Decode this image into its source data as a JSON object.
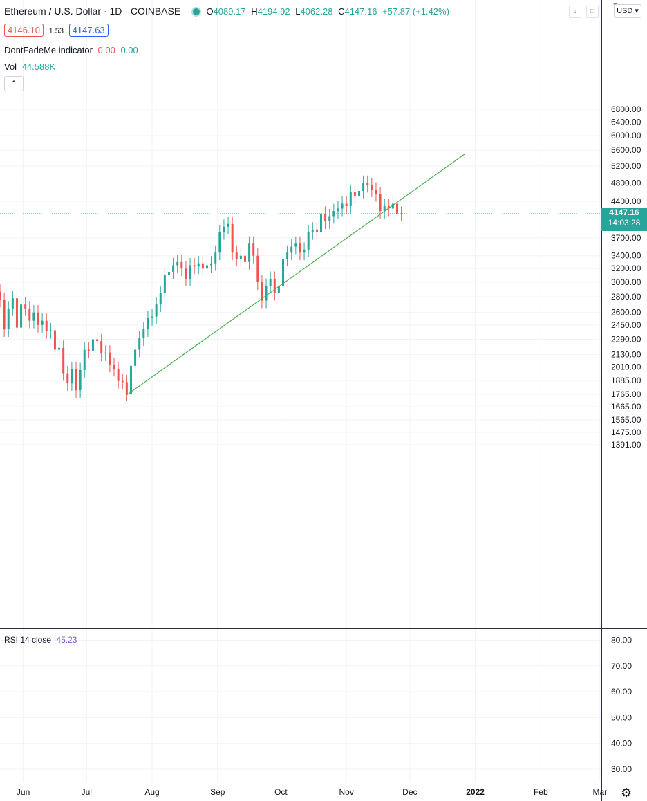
{
  "header": {
    "title": "Ethereum / U.S. Dollar · 1D · COINBASE",
    "o_label": "O",
    "o": "4089.17",
    "h_label": "H",
    "h": "4194.92",
    "l_label": "L",
    "l": "4062.28",
    "c_label": "C",
    "c": "4147.16",
    "change": "+57.87 (+1.42%)",
    "bid": "4146.10",
    "spread": "1.53",
    "ask": "4147.63"
  },
  "indicators": {
    "dfm_name": "DontFadeMe indicator",
    "dfm_v1": "0.00",
    "dfm_v2": "0.00",
    "vol_name": "Vol",
    "vol_value": "44.588K",
    "rsi_name": "RSI 14 close",
    "rsi_value": "45.23"
  },
  "price_axis": {
    "currency": "USD",
    "last_price": "4147.16",
    "countdown": "14:03:28",
    "top_tick_cut": "7"
  },
  "colors": {
    "up": "#26a69a",
    "down": "#ef5350",
    "trendline": "#4caf50",
    "rsi_value": "#7e57c2"
  },
  "icons": {
    "collapse": "chevron-up-icon",
    "settings": "gear-icon"
  },
  "chart_data": [
    {
      "type": "candlestick",
      "title": "Ethereum / U.S. Dollar · 1D · COINBASE",
      "y_scale": "log",
      "ylim": [
        1391,
        7000
      ],
      "y_ticks": [
        6800,
        6400,
        6000,
        5600,
        5200,
        4800,
        4400,
        3700,
        3400,
        3200,
        3000,
        2800,
        2600,
        2450,
        2290,
        2130,
        2010,
        1885,
        1765,
        1665,
        1565,
        1475,
        1391
      ],
      "y_tick_labels": [
        "6800.00",
        "6400.00",
        "6000.00",
        "5600.00",
        "5200.00",
        "4800.00",
        "4400.00",
        "3700.00",
        "3400.00",
        "3200.00",
        "3000.00",
        "2800.00",
        "2600.00",
        "2450.00",
        "2290.00",
        "2130.00",
        "2010.00",
        "1885.00",
        "1765.00",
        "1665.00",
        "1565.00",
        "1475.00",
        "1391.00"
      ],
      "x_labels": [
        "Jun",
        "Jul",
        "Aug",
        "Sep",
        "Oct",
        "Nov",
        "Dec",
        "2022",
        "Feb",
        "Mar"
      ],
      "x_range": [
        "2021-05-21",
        "2022-03-03"
      ],
      "grid": true,
      "close_series": [
        {
          "x": "2021-05-21",
          "y": 2760
        },
        {
          "x": "2021-05-23",
          "y": 2400
        },
        {
          "x": "2021-05-25",
          "y": 2650
        },
        {
          "x": "2021-05-27",
          "y": 2780
        },
        {
          "x": "2021-05-29",
          "y": 2420
        },
        {
          "x": "2021-05-31",
          "y": 2700
        },
        {
          "x": "2021-06-02",
          "y": 2650
        },
        {
          "x": "2021-06-04",
          "y": 2500
        },
        {
          "x": "2021-06-06",
          "y": 2600
        },
        {
          "x": "2021-06-08",
          "y": 2450
        },
        {
          "x": "2021-06-10",
          "y": 2500
        },
        {
          "x": "2021-06-12",
          "y": 2380
        },
        {
          "x": "2021-06-14",
          "y": 2390
        },
        {
          "x": "2021-06-16",
          "y": 2180
        },
        {
          "x": "2021-06-18",
          "y": 2200
        },
        {
          "x": "2021-06-20",
          "y": 1950
        },
        {
          "x": "2021-06-22",
          "y": 1860
        },
        {
          "x": "2021-06-24",
          "y": 1990
        },
        {
          "x": "2021-06-26",
          "y": 1800
        },
        {
          "x": "2021-06-28",
          "y": 1980
        },
        {
          "x": "2021-06-30",
          "y": 2180
        },
        {
          "x": "2021-07-02",
          "y": 2170
        },
        {
          "x": "2021-07-04",
          "y": 2290
        },
        {
          "x": "2021-07-06",
          "y": 2270
        },
        {
          "x": "2021-07-08",
          "y": 2140
        },
        {
          "x": "2021-07-10",
          "y": 2150
        },
        {
          "x": "2021-07-12",
          "y": 2030
        },
        {
          "x": "2021-07-14",
          "y": 1990
        },
        {
          "x": "2021-07-16",
          "y": 1880
        },
        {
          "x": "2021-07-18",
          "y": 1870
        },
        {
          "x": "2021-07-20",
          "y": 1770
        },
        {
          "x": "2021-07-22",
          "y": 2020
        },
        {
          "x": "2021-07-24",
          "y": 2180
        },
        {
          "x": "2021-07-26",
          "y": 2300
        },
        {
          "x": "2021-07-28",
          "y": 2400
        },
        {
          "x": "2021-07-30",
          "y": 2530
        },
        {
          "x": "2021-08-01",
          "y": 2550
        },
        {
          "x": "2021-08-03",
          "y": 2700
        },
        {
          "x": "2021-08-05",
          "y": 2850
        },
        {
          "x": "2021-08-07",
          "y": 3100
        },
        {
          "x": "2021-08-09",
          "y": 3150
        },
        {
          "x": "2021-08-11",
          "y": 3250
        },
        {
          "x": "2021-08-13",
          "y": 3300
        },
        {
          "x": "2021-08-15",
          "y": 3200
        },
        {
          "x": "2021-08-17",
          "y": 3050
        },
        {
          "x": "2021-08-19",
          "y": 3250
        },
        {
          "x": "2021-08-21",
          "y": 3230
        },
        {
          "x": "2021-08-23",
          "y": 3280
        },
        {
          "x": "2021-08-25",
          "y": 3200
        },
        {
          "x": "2021-08-27",
          "y": 3250
        },
        {
          "x": "2021-08-29",
          "y": 3280
        },
        {
          "x": "2021-08-31",
          "y": 3450
        },
        {
          "x": "2021-09-02",
          "y": 3800
        },
        {
          "x": "2021-09-04",
          "y": 3900
        },
        {
          "x": "2021-09-06",
          "y": 3950
        },
        {
          "x": "2021-09-08",
          "y": 3450
        },
        {
          "x": "2021-09-10",
          "y": 3350
        },
        {
          "x": "2021-09-12",
          "y": 3400
        },
        {
          "x": "2021-09-14",
          "y": 3300
        },
        {
          "x": "2021-09-16",
          "y": 3600
        },
        {
          "x": "2021-09-18",
          "y": 3400
        },
        {
          "x": "2021-09-20",
          "y": 3000
        },
        {
          "x": "2021-09-22",
          "y": 2750
        },
        {
          "x": "2021-09-24",
          "y": 2950
        },
        {
          "x": "2021-09-26",
          "y": 3050
        },
        {
          "x": "2021-09-28",
          "y": 2850
        },
        {
          "x": "2021-09-30",
          "y": 2950
        },
        {
          "x": "2021-10-02",
          "y": 3350
        },
        {
          "x": "2021-10-04",
          "y": 3450
        },
        {
          "x": "2021-10-06",
          "y": 3550
        },
        {
          "x": "2021-10-08",
          "y": 3600
        },
        {
          "x": "2021-10-10",
          "y": 3450
        },
        {
          "x": "2021-10-12",
          "y": 3500
        },
        {
          "x": "2021-10-14",
          "y": 3800
        },
        {
          "x": "2021-10-16",
          "y": 3850
        },
        {
          "x": "2021-10-18",
          "y": 3800
        },
        {
          "x": "2021-10-20",
          "y": 4150
        },
        {
          "x": "2021-10-22",
          "y": 4000
        },
        {
          "x": "2021-10-24",
          "y": 4100
        },
        {
          "x": "2021-10-26",
          "y": 4200
        },
        {
          "x": "2021-10-28",
          "y": 4250
        },
        {
          "x": "2021-10-30",
          "y": 4350
        },
        {
          "x": "2021-11-01",
          "y": 4300
        },
        {
          "x": "2021-11-03",
          "y": 4600
        },
        {
          "x": "2021-11-05",
          "y": 4500
        },
        {
          "x": "2021-11-07",
          "y": 4620
        },
        {
          "x": "2021-11-09",
          "y": 4800
        },
        {
          "x": "2021-11-11",
          "y": 4750
        },
        {
          "x": "2021-11-13",
          "y": 4650
        },
        {
          "x": "2021-11-15",
          "y": 4550
        },
        {
          "x": "2021-11-17",
          "y": 4200
        },
        {
          "x": "2021-11-19",
          "y": 4300
        },
        {
          "x": "2021-11-21",
          "y": 4250
        },
        {
          "x": "2021-11-23",
          "y": 4350
        },
        {
          "x": "2021-11-25",
          "y": 4150
        },
        {
          "x": "2021-11-27",
          "y": 4147.16
        }
      ],
      "trendline": {
        "x1": "2021-07-20",
        "y1": 1760,
        "x2": "2021-12-27",
        "y2": 5500,
        "color": "#4caf50"
      }
    },
    {
      "type": "line",
      "title": "RSI 14 close",
      "ylim": [
        25,
        85
      ],
      "y_ticks": [
        80,
        70,
        60,
        50,
        40,
        30
      ],
      "y_tick_labels": [
        "80.00",
        "70.00",
        "60.00",
        "50.00",
        "40.00",
        "30.00"
      ],
      "latest_value": 45.23
    }
  ]
}
